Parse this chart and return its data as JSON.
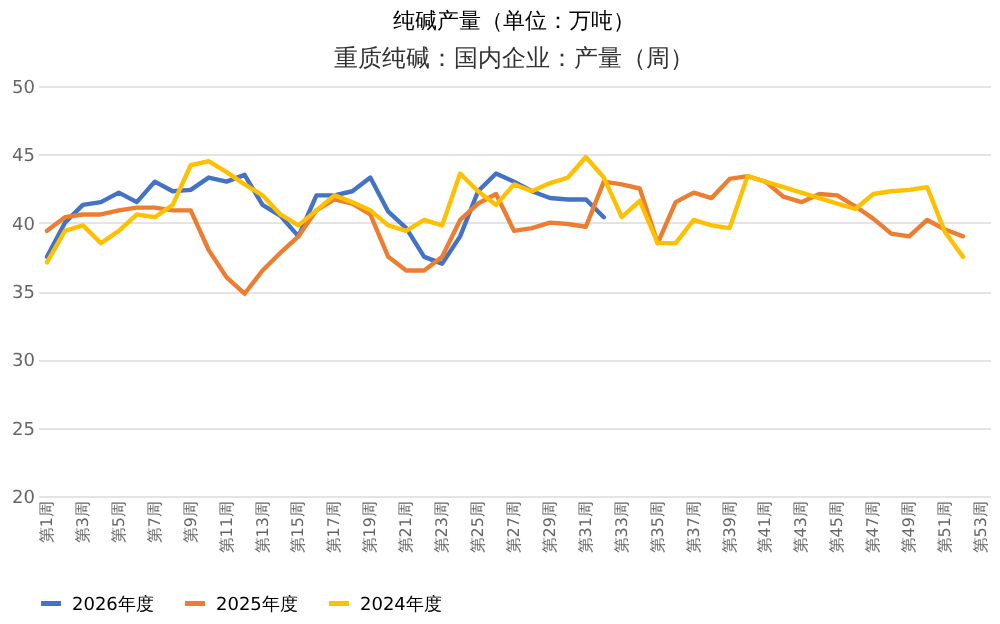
{
  "chart_data": {
    "type": "line",
    "title": "纯碱产量（单位：万吨）",
    "subtitle": "重质纯碱：国内企业：产量（周）",
    "categories": [
      "第1周",
      null,
      "第3周",
      null,
      "第5周",
      null,
      "第7周",
      null,
      "第9周",
      null,
      "第11周",
      null,
      "第13周",
      null,
      "第15周",
      null,
      "第17周",
      null,
      "第19周",
      null,
      "第21周",
      null,
      "第23周",
      null,
      "第25周",
      null,
      "第27周",
      null,
      "第29周",
      null,
      "第31周",
      null,
      "第33周",
      null,
      "第35周",
      null,
      "第37周",
      null,
      "第39周",
      null,
      "第41周",
      null,
      "第43周",
      null,
      "第45周",
      null,
      "第47周",
      null,
      "第49周",
      null,
      "第51周",
      null,
      "第53周"
    ],
    "series": [
      {
        "name": "2026年度",
        "color": "#4472c4",
        "values": [
          37.5,
          40,
          41.3,
          41.5,
          42.2,
          41.5,
          43,
          42.3,
          42.4,
          43.3,
          43,
          43.5,
          41.3,
          40.5,
          39,
          42,
          42,
          42.3,
          43.3,
          40.8,
          39.6,
          37.5,
          37,
          39,
          42.3,
          43.6,
          43,
          42.3,
          41.8,
          41.7,
          41.7,
          40.4,
          null,
          null,
          null,
          null,
          null,
          null,
          null,
          null,
          null,
          null,
          null,
          null,
          null,
          null,
          null,
          null,
          null,
          null,
          null,
          null,
          null
        ]
      },
      {
        "name": "2025年度",
        "color": "#ed7d31",
        "values": [
          39.4,
          40.4,
          40.6,
          40.6,
          40.9,
          41.1,
          41.1,
          40.9,
          40.9,
          38,
          36,
          34.8,
          36.5,
          37.8,
          39,
          40.9,
          41.7,
          41.4,
          40.6,
          37.5,
          36.5,
          36.5,
          37.5,
          40.2,
          41.4,
          42.1,
          39.4,
          39.6,
          40,
          39.9,
          39.7,
          43,
          42.8,
          42.5,
          38.5,
          41.5,
          42.2,
          41.8,
          43.2,
          43.4,
          43,
          41.9,
          41.5,
          42.1,
          42,
          41.2,
          40.3,
          39.2,
          39,
          40.2,
          39.5,
          39,
          null
        ]
      },
      {
        "name": "2024年度",
        "color": "#ffc000",
        "values": [
          37.1,
          39.4,
          39.8,
          38.5,
          39.4,
          40.6,
          40.4,
          41.3,
          44.2,
          44.5,
          43.7,
          42.8,
          42,
          40.6,
          39.8,
          40.9,
          42,
          41.5,
          40.9,
          39.8,
          39.4,
          40.2,
          39.8,
          43.6,
          42.3,
          41.3,
          42.8,
          42.3,
          42.9,
          43.3,
          44.8,
          43.3,
          40.4,
          41.6,
          38.5,
          38.5,
          40.2,
          39.8,
          39.6,
          43.4,
          43,
          42.6,
          42.2,
          41.8,
          41.4,
          41,
          42.1,
          42.3,
          42.4,
          42.6,
          39.3,
          37.5,
          null
        ]
      }
    ],
    "ylim": [
      20,
      50
    ],
    "yticks": [
      20,
      25,
      30,
      35,
      40,
      45,
      50
    ],
    "grid": "y",
    "legend": "bottom",
    "marker": "none",
    "line_style": "solid"
  }
}
